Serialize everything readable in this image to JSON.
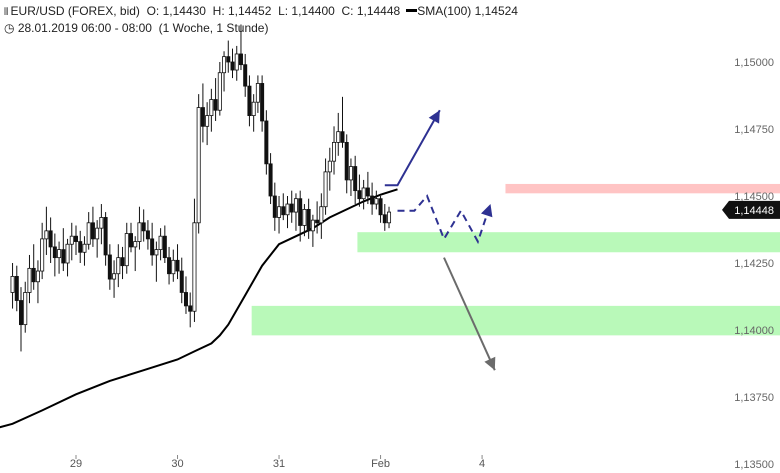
{
  "header": {
    "symbol_line_prefix": "EUR/USD (FOREX, bid)",
    "open_label": "O:",
    "open": "1,14430",
    "high_label": "H:",
    "high": "1,14452",
    "low_label": "L:",
    "low": "1,14400",
    "close_label": "C:",
    "close": "1,14448",
    "sma_label": "SMA(100)",
    "sma": "1,14524",
    "period": "28.01.2019 06:00 - 08:00",
    "interval": "(1 Woche, 1 Stunde)"
  },
  "colors": {
    "resistance_zone": "#ffc4c4",
    "support_zone": "#b9f9b9",
    "sma_line": "#000000",
    "bull_arrow": "#2e3192",
    "bear_arrow": "#6b6b6b",
    "price_tag": "#111111"
  },
  "chart_data": {
    "type": "candlestick",
    "instrument": "EUR/USD",
    "ylim": [
      1.135,
      1.151
    ],
    "y_ticks": [
      {
        "v": 1.15,
        "label": "1,15000"
      },
      {
        "v": 1.1475,
        "label": "1,14750"
      },
      {
        "v": 1.145,
        "label": "1,14500"
      },
      {
        "v": 1.1425,
        "label": "1,14250"
      },
      {
        "v": 1.14,
        "label": "1,14000"
      },
      {
        "v": 1.1375,
        "label": "1,13750"
      },
      {
        "v": 1.135,
        "label": "1,13500"
      }
    ],
    "x_ticks": [
      {
        "i": 0,
        "label": "29"
      },
      {
        "i": 24,
        "label": "30"
      },
      {
        "i": 48,
        "label": "31"
      },
      {
        "i": 72,
        "label": "Feb"
      },
      {
        "i": 96,
        "label": "4"
      }
    ],
    "current_price": {
      "v": 1.14448,
      "label": "1,14448"
    },
    "sma_value": 1.14524,
    "zones": [
      {
        "kind": "resistance",
        "from": 1.1451,
        "to": 1.14545,
        "start_index": 102
      },
      {
        "kind": "support",
        "from": 1.1429,
        "to": 1.14365,
        "start_index": 67
      },
      {
        "kind": "support",
        "from": 1.1398,
        "to": 1.1409,
        "start_index": 42
      }
    ],
    "candles": [
      [
        -15,
        1.1414,
        1.1425,
        1.1408,
        1.142
      ],
      [
        -14,
        1.142,
        1.1424,
        1.1407,
        1.1411
      ],
      [
        -13,
        1.1411,
        1.1416,
        1.1392,
        1.1402
      ],
      [
        -12,
        1.1402,
        1.1418,
        1.1399,
        1.1414
      ],
      [
        -11,
        1.1414,
        1.1428,
        1.141,
        1.1423
      ],
      [
        -10,
        1.1423,
        1.1432,
        1.1415,
        1.1418
      ],
      [
        -9,
        1.1418,
        1.1426,
        1.141,
        1.1422
      ],
      [
        -8,
        1.1422,
        1.144,
        1.1419,
        1.1434
      ],
      [
        -7,
        1.1434,
        1.1446,
        1.1428,
        1.1437
      ],
      [
        -6,
        1.1437,
        1.1442,
        1.1425,
        1.1431
      ],
      [
        -5,
        1.1431,
        1.1436,
        1.142,
        1.1427
      ],
      [
        -4,
        1.1427,
        1.1433,
        1.1421,
        1.143
      ],
      [
        -3,
        1.143,
        1.1438,
        1.1422,
        1.1425
      ],
      [
        -2,
        1.1425,
        1.1434,
        1.142,
        1.1432
      ],
      [
        -1,
        1.1432,
        1.144,
        1.1426,
        1.1435
      ],
      [
        0,
        1.1435,
        1.1439,
        1.1428,
        1.1433
      ],
      [
        1,
        1.1433,
        1.1437,
        1.1425,
        1.1429
      ],
      [
        2,
        1.1429,
        1.1435,
        1.1424,
        1.1432
      ],
      [
        3,
        1.1432,
        1.1444,
        1.143,
        1.144
      ],
      [
        4,
        1.144,
        1.1446,
        1.1431,
        1.1434
      ],
      [
        5,
        1.1434,
        1.1441,
        1.1427,
        1.1438
      ],
      [
        6,
        1.1438,
        1.1447,
        1.1432,
        1.1442
      ],
      [
        7,
        1.1442,
        1.1444,
        1.1424,
        1.1428
      ],
      [
        8,
        1.1428,
        1.1432,
        1.1415,
        1.1419
      ],
      [
        9,
        1.1419,
        1.1426,
        1.1412,
        1.1421
      ],
      [
        10,
        1.1421,
        1.1432,
        1.1416,
        1.1427
      ],
      [
        11,
        1.1427,
        1.1431,
        1.1419,
        1.1424
      ],
      [
        12,
        1.1424,
        1.144,
        1.1421,
        1.1436
      ],
      [
        13,
        1.1436,
        1.144,
        1.1429,
        1.1431
      ],
      [
        14,
        1.1431,
        1.1435,
        1.1422,
        1.1433
      ],
      [
        15,
        1.1433,
        1.1446,
        1.143,
        1.144
      ],
      [
        16,
        1.144,
        1.1445,
        1.1433,
        1.1437
      ],
      [
        17,
        1.1437,
        1.1441,
        1.143,
        1.1434
      ],
      [
        18,
        1.1434,
        1.144,
        1.1424,
        1.1428
      ],
      [
        19,
        1.1428,
        1.1433,
        1.1418,
        1.143
      ],
      [
        20,
        1.143,
        1.1438,
        1.1426,
        1.1435
      ],
      [
        21,
        1.1435,
        1.1439,
        1.1425,
        1.1427
      ],
      [
        22,
        1.1427,
        1.1431,
        1.1417,
        1.1421
      ],
      [
        23,
        1.1421,
        1.143,
        1.1418,
        1.1426
      ],
      [
        24,
        1.1426,
        1.1432,
        1.1419,
        1.1422
      ],
      [
        25,
        1.1422,
        1.1427,
        1.141,
        1.1414
      ],
      [
        26,
        1.1414,
        1.142,
        1.1406,
        1.1409
      ],
      [
        27,
        1.1409,
        1.1414,
        1.1401,
        1.1407
      ],
      [
        28,
        1.1407,
        1.1449,
        1.1403,
        1.144
      ],
      [
        29,
        1.144,
        1.1488,
        1.1436,
        1.1483
      ],
      [
        30,
        1.1483,
        1.1492,
        1.147,
        1.1476
      ],
      [
        31,
        1.1476,
        1.1485,
        1.1469,
        1.148
      ],
      [
        32,
        1.148,
        1.149,
        1.1474,
        1.1486
      ],
      [
        33,
        1.1486,
        1.1494,
        1.1478,
        1.1482
      ],
      [
        34,
        1.1482,
        1.15,
        1.148,
        1.1496
      ],
      [
        35,
        1.1496,
        1.1504,
        1.1489,
        1.1502
      ],
      [
        36,
        1.1502,
        1.1508,
        1.1496,
        1.15
      ],
      [
        37,
        1.15,
        1.1505,
        1.1494,
        1.1497
      ],
      [
        38,
        1.1497,
        1.1506,
        1.1493,
        1.1503
      ],
      [
        39,
        1.1503,
        1.1514,
        1.1497,
        1.1499
      ],
      [
        40,
        1.1499,
        1.1503,
        1.1487,
        1.1491
      ],
      [
        41,
        1.1491,
        1.1495,
        1.1476,
        1.148
      ],
      [
        42,
        1.148,
        1.1488,
        1.1474,
        1.1485
      ],
      [
        43,
        1.1485,
        1.1495,
        1.1481,
        1.1492
      ],
      [
        44,
        1.1492,
        1.1495,
        1.1474,
        1.1478
      ],
      [
        45,
        1.1478,
        1.1482,
        1.1458,
        1.1462
      ],
      [
        46,
        1.1462,
        1.1466,
        1.1447,
        1.145
      ],
      [
        47,
        1.145,
        1.1455,
        1.1437,
        1.1442
      ],
      [
        48,
        1.1442,
        1.145,
        1.1436,
        1.1446
      ],
      [
        49,
        1.1446,
        1.1451,
        1.1441,
        1.1443
      ],
      [
        50,
        1.1443,
        1.145,
        1.1438,
        1.1447
      ],
      [
        51,
        1.1447,
        1.1452,
        1.144,
        1.1444
      ],
      [
        52,
        1.1444,
        1.1451,
        1.1437,
        1.1449
      ],
      [
        53,
        1.1449,
        1.1452,
        1.1433,
        1.1439
      ],
      [
        54,
        1.1439,
        1.1447,
        1.1435,
        1.1445
      ],
      [
        55,
        1.1445,
        1.1449,
        1.1434,
        1.1437
      ],
      [
        56,
        1.1437,
        1.1443,
        1.1431,
        1.1441
      ],
      [
        57,
        1.1441,
        1.1448,
        1.1436,
        1.144
      ],
      [
        58,
        1.144,
        1.1451,
        1.1434,
        1.1446
      ],
      [
        59,
        1.1446,
        1.1464,
        1.1443,
        1.1459
      ],
      [
        60,
        1.1459,
        1.1468,
        1.1452,
        1.1463
      ],
      [
        61,
        1.1463,
        1.1476,
        1.1458,
        1.147
      ],
      [
        62,
        1.147,
        1.1481,
        1.1465,
        1.1474
      ],
      [
        63,
        1.1474,
        1.1487,
        1.1468,
        1.147
      ],
      [
        64,
        1.147,
        1.1473,
        1.1451,
        1.1456
      ],
      [
        65,
        1.1456,
        1.1464,
        1.145,
        1.1461
      ],
      [
        66,
        1.1461,
        1.1465,
        1.1447,
        1.1452
      ],
      [
        67,
        1.1452,
        1.1458,
        1.1446,
        1.1449
      ],
      [
        68,
        1.1449,
        1.1456,
        1.1445,
        1.1453
      ],
      [
        69,
        1.1453,
        1.1459,
        1.1447,
        1.145
      ],
      [
        70,
        1.145,
        1.1455,
        1.1443,
        1.1447
      ],
      [
        71,
        1.1447,
        1.1452,
        1.1445,
        1.1449
      ],
      [
        72,
        1.1449,
        1.145,
        1.144,
        1.1443
      ],
      [
        73,
        1.1443,
        1.1447,
        1.1437,
        1.144
      ],
      [
        74,
        1.144,
        1.1446,
        1.1438,
        1.1444
      ]
    ],
    "sma": [
      [
        -22,
        1.1362
      ],
      [
        -15,
        1.1365
      ],
      [
        -8,
        1.137
      ],
      [
        0,
        1.1376
      ],
      [
        8,
        1.1381
      ],
      [
        16,
        1.1385
      ],
      [
        24,
        1.1389
      ],
      [
        28,
        1.1392
      ],
      [
        32,
        1.1395
      ],
      [
        34,
        1.1398
      ],
      [
        36,
        1.1402
      ],
      [
        40,
        1.1413
      ],
      [
        44,
        1.1424
      ],
      [
        48,
        1.1432
      ],
      [
        52,
        1.1435
      ],
      [
        56,
        1.1438
      ],
      [
        60,
        1.1442
      ],
      [
        64,
        1.1445
      ],
      [
        68,
        1.1448
      ],
      [
        72,
        1.14505
      ],
      [
        76,
        1.14525
      ]
    ],
    "scenarios": [
      {
        "kind": "bullish",
        "points": [
          [
            73,
            1.1454
          ],
          [
            76,
            1.1454
          ],
          [
            86,
            1.1482
          ]
        ]
      },
      {
        "kind": "bullish-dashed",
        "points": [
          [
            76,
            1.14445
          ],
          [
            80,
            1.14445
          ],
          [
            83,
            1.145
          ],
          [
            87,
            1.1434
          ],
          [
            91,
            1.14445
          ],
          [
            95,
            1.1433
          ],
          [
            98,
            1.1447
          ]
        ]
      },
      {
        "kind": "bearish",
        "points": [
          [
            87,
            1.1427
          ],
          [
            99,
            1.1385
          ]
        ]
      }
    ]
  }
}
